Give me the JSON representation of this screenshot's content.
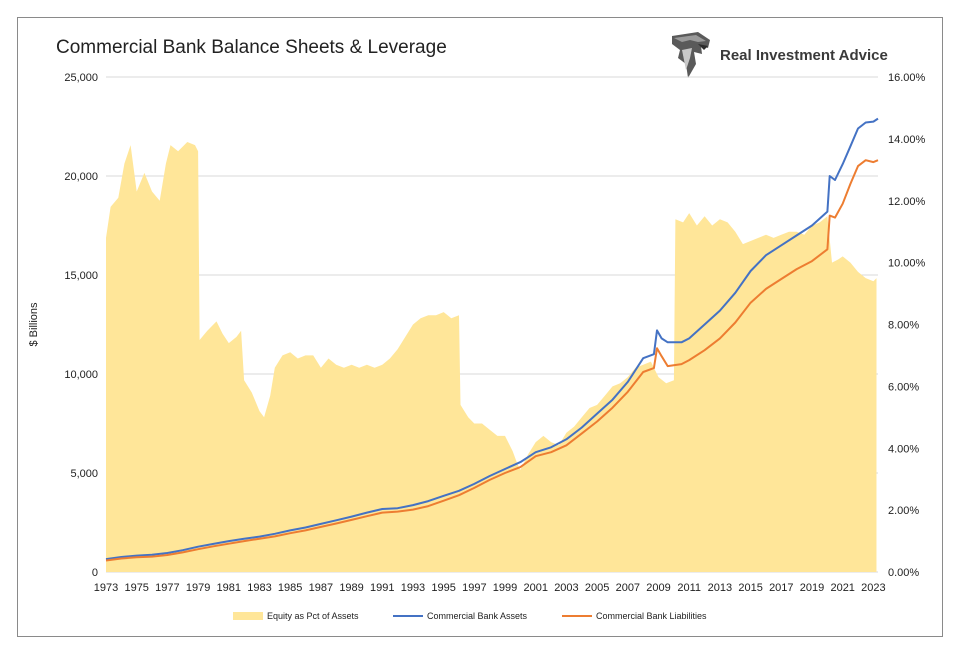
{
  "title": "Commercial Bank Balance Sheets & Leverage",
  "brand": {
    "name": "Real Investment Advice",
    "logo_icon": "eagle-head-logo-icon"
  },
  "colors": {
    "equity": "#FFE699",
    "assets": "#4472C4",
    "liabilities": "#ED7D31",
    "grid": "#D9D9D9"
  },
  "chart_data": {
    "type": "area+line",
    "ylabel": "$ Billions",
    "y_left": {
      "lim": [
        0,
        25000
      ],
      "ticks": [
        "0",
        "5,000",
        "10,000",
        "15,000",
        "20,000",
        "25,000"
      ]
    },
    "y_right": {
      "lim": [
        0,
        16
      ],
      "ticks": [
        "0.00%",
        "2.00%",
        "4.00%",
        "6.00%",
        "8.00%",
        "10.00%",
        "12.00%",
        "14.00%",
        "16.00%"
      ]
    },
    "x_ticks": [
      "1973",
      "1975",
      "1977",
      "1979",
      "1981",
      "1983",
      "1985",
      "1987",
      "1989",
      "1991",
      "1993",
      "1995",
      "1997",
      "1999",
      "2001",
      "2003",
      "2005",
      "2007",
      "2009",
      "2011",
      "2013",
      "2015",
      "2017",
      "2019",
      "2021",
      "2023"
    ],
    "grid": "horizontal",
    "legend_position": "bottom",
    "series": [
      {
        "name": "Equity as Pct of Assets",
        "type": "area",
        "axis": "right",
        "points": [
          [
            1973.0,
            10.8
          ],
          [
            1973.3,
            11.8
          ],
          [
            1973.8,
            12.1
          ],
          [
            1974.2,
            13.2
          ],
          [
            1974.6,
            13.8
          ],
          [
            1975.0,
            12.3
          ],
          [
            1975.5,
            12.9
          ],
          [
            1976.0,
            12.3
          ],
          [
            1976.5,
            12.0
          ],
          [
            1976.9,
            13.2
          ],
          [
            1977.2,
            13.8
          ],
          [
            1977.7,
            13.6
          ],
          [
            1978.3,
            13.9
          ],
          [
            1978.8,
            13.8
          ],
          [
            1979.0,
            13.6
          ],
          [
            1979.1,
            7.5
          ],
          [
            1979.6,
            7.8
          ],
          [
            1980.2,
            8.1
          ],
          [
            1980.6,
            7.7
          ],
          [
            1981.0,
            7.4
          ],
          [
            1981.5,
            7.6
          ],
          [
            1981.8,
            7.8
          ],
          [
            1982.0,
            6.2
          ],
          [
            1982.5,
            5.8
          ],
          [
            1983.0,
            5.2
          ],
          [
            1983.3,
            5.0
          ],
          [
            1983.7,
            5.7
          ],
          [
            1984.0,
            6.6
          ],
          [
            1984.5,
            7.0
          ],
          [
            1985.0,
            7.1
          ],
          [
            1985.5,
            6.9
          ],
          [
            1986.0,
            7.0
          ],
          [
            1986.5,
            7.0
          ],
          [
            1987.0,
            6.6
          ],
          [
            1987.5,
            6.9
          ],
          [
            1988.0,
            6.7
          ],
          [
            1988.5,
            6.6
          ],
          [
            1989.0,
            6.7
          ],
          [
            1989.5,
            6.6
          ],
          [
            1990.0,
            6.7
          ],
          [
            1990.5,
            6.6
          ],
          [
            1991.0,
            6.7
          ],
          [
            1991.5,
            6.9
          ],
          [
            1992.0,
            7.2
          ],
          [
            1992.5,
            7.6
          ],
          [
            1993.0,
            8.0
          ],
          [
            1993.5,
            8.2
          ],
          [
            1994.0,
            8.3
          ],
          [
            1994.5,
            8.3
          ],
          [
            1995.0,
            8.4
          ],
          [
            1995.5,
            8.2
          ],
          [
            1996.0,
            8.3
          ],
          [
            1996.1,
            5.4
          ],
          [
            1996.6,
            5.0
          ],
          [
            1997.0,
            4.8
          ],
          [
            1997.5,
            4.8
          ],
          [
            1998.0,
            4.6
          ],
          [
            1998.5,
            4.4
          ],
          [
            1999.0,
            4.4
          ],
          [
            1999.5,
            3.9
          ],
          [
            1999.8,
            3.5
          ],
          [
            2000.0,
            3.3
          ],
          [
            2000.5,
            3.8
          ],
          [
            2001.0,
            4.2
          ],
          [
            2001.5,
            4.4
          ],
          [
            2002.0,
            4.2
          ],
          [
            2002.5,
            4.1
          ],
          [
            2003.0,
            4.5
          ],
          [
            2003.5,
            4.7
          ],
          [
            2004.0,
            5.0
          ],
          [
            2004.5,
            5.3
          ],
          [
            2005.0,
            5.4
          ],
          [
            2005.5,
            5.7
          ],
          [
            2006.0,
            6.0
          ],
          [
            2006.5,
            6.1
          ],
          [
            2007.0,
            6.3
          ],
          [
            2007.5,
            6.6
          ],
          [
            2008.0,
            6.7
          ],
          [
            2008.5,
            6.8
          ],
          [
            2009.0,
            6.3
          ],
          [
            2009.5,
            6.1
          ],
          [
            2010.0,
            6.2
          ],
          [
            2010.1,
            11.4
          ],
          [
            2010.6,
            11.3
          ],
          [
            2011.0,
            11.6
          ],
          [
            2011.5,
            11.2
          ],
          [
            2012.0,
            11.5
          ],
          [
            2012.5,
            11.2
          ],
          [
            2013.0,
            11.4
          ],
          [
            2013.5,
            11.3
          ],
          [
            2014.0,
            11.0
          ],
          [
            2014.5,
            10.6
          ],
          [
            2015.0,
            10.7
          ],
          [
            2015.5,
            10.8
          ],
          [
            2016.0,
            10.9
          ],
          [
            2016.5,
            10.8
          ],
          [
            2017.0,
            10.9
          ],
          [
            2017.5,
            11.0
          ],
          [
            2018.0,
            11.0
          ],
          [
            2018.5,
            10.9
          ],
          [
            2019.0,
            11.2
          ],
          [
            2019.5,
            11.3
          ],
          [
            2020.0,
            11.5
          ],
          [
            2020.3,
            10.0
          ],
          [
            2020.7,
            10.1
          ],
          [
            2021.0,
            10.2
          ],
          [
            2021.5,
            10.0
          ],
          [
            2022.0,
            9.7
          ],
          [
            2022.5,
            9.5
          ],
          [
            2023.0,
            9.4
          ],
          [
            2023.2,
            9.5
          ]
        ]
      },
      {
        "name": "Commercial Bank Assets",
        "type": "line",
        "axis": "left",
        "points": [
          [
            1973.0,
            650
          ],
          [
            1974.0,
            760
          ],
          [
            1975.0,
            830
          ],
          [
            1976.0,
            870
          ],
          [
            1977.0,
            960
          ],
          [
            1978.0,
            1100
          ],
          [
            1979.0,
            1280
          ],
          [
            1980.0,
            1420
          ],
          [
            1981.0,
            1560
          ],
          [
            1982.0,
            1680
          ],
          [
            1983.0,
            1790
          ],
          [
            1984.0,
            1930
          ],
          [
            1985.0,
            2100
          ],
          [
            1986.0,
            2250
          ],
          [
            1987.0,
            2430
          ],
          [
            1988.0,
            2610
          ],
          [
            1989.0,
            2800
          ],
          [
            1990.0,
            3000
          ],
          [
            1991.0,
            3180
          ],
          [
            1992.0,
            3220
          ],
          [
            1993.0,
            3380
          ],
          [
            1994.0,
            3580
          ],
          [
            1995.0,
            3850
          ],
          [
            1996.0,
            4100
          ],
          [
            1997.0,
            4450
          ],
          [
            1998.0,
            4850
          ],
          [
            1999.0,
            5200
          ],
          [
            2000.0,
            5550
          ],
          [
            2001.0,
            6050
          ],
          [
            2002.0,
            6300
          ],
          [
            2003.0,
            6700
          ],
          [
            2004.0,
            7300
          ],
          [
            2005.0,
            8000
          ],
          [
            2006.0,
            8700
          ],
          [
            2007.0,
            9600
          ],
          [
            2008.0,
            10800
          ],
          [
            2008.7,
            11000
          ],
          [
            2008.9,
            12200
          ],
          [
            2009.2,
            11800
          ],
          [
            2009.6,
            11600
          ],
          [
            2010.5,
            11600
          ],
          [
            2011.0,
            11800
          ],
          [
            2012.0,
            12500
          ],
          [
            2013.0,
            13200
          ],
          [
            2014.0,
            14100
          ],
          [
            2015.0,
            15200
          ],
          [
            2016.0,
            16000
          ],
          [
            2017.0,
            16500
          ],
          [
            2018.0,
            17000
          ],
          [
            2019.0,
            17500
          ],
          [
            2020.0,
            18200
          ],
          [
            2020.15,
            20000
          ],
          [
            2020.5,
            19800
          ],
          [
            2021.0,
            20600
          ],
          [
            2021.5,
            21500
          ],
          [
            2022.0,
            22400
          ],
          [
            2022.5,
            22700
          ],
          [
            2023.0,
            22750
          ],
          [
            2023.3,
            22900
          ]
        ]
      },
      {
        "name": "Commercial Bank Liabilities",
        "type": "line",
        "axis": "left",
        "points": [
          [
            1973.0,
            580
          ],
          [
            1974.0,
            680
          ],
          [
            1975.0,
            740
          ],
          [
            1976.0,
            780
          ],
          [
            1977.0,
            860
          ],
          [
            1978.0,
            990
          ],
          [
            1979.0,
            1150
          ],
          [
            1980.0,
            1300
          ],
          [
            1981.0,
            1430
          ],
          [
            1982.0,
            1560
          ],
          [
            1983.0,
            1680
          ],
          [
            1984.0,
            1800
          ],
          [
            1985.0,
            1960
          ],
          [
            1986.0,
            2100
          ],
          [
            1987.0,
            2280
          ],
          [
            1988.0,
            2450
          ],
          [
            1989.0,
            2630
          ],
          [
            1990.0,
            2820
          ],
          [
            1991.0,
            3000
          ],
          [
            1992.0,
            3050
          ],
          [
            1993.0,
            3150
          ],
          [
            1994.0,
            3330
          ],
          [
            1995.0,
            3600
          ],
          [
            1996.0,
            3880
          ],
          [
            1997.0,
            4250
          ],
          [
            1998.0,
            4650
          ],
          [
            1999.0,
            5000
          ],
          [
            2000.0,
            5300
          ],
          [
            2001.0,
            5850
          ],
          [
            2002.0,
            6050
          ],
          [
            2003.0,
            6400
          ],
          [
            2004.0,
            7000
          ],
          [
            2005.0,
            7600
          ],
          [
            2006.0,
            8300
          ],
          [
            2007.0,
            9100
          ],
          [
            2008.0,
            10100
          ],
          [
            2008.7,
            10300
          ],
          [
            2008.9,
            11300
          ],
          [
            2009.2,
            10900
          ],
          [
            2009.6,
            10400
          ],
          [
            2010.5,
            10500
          ],
          [
            2011.0,
            10700
          ],
          [
            2012.0,
            11200
          ],
          [
            2013.0,
            11800
          ],
          [
            2014.0,
            12600
          ],
          [
            2015.0,
            13600
          ],
          [
            2016.0,
            14300
          ],
          [
            2017.0,
            14800
          ],
          [
            2018.0,
            15300
          ],
          [
            2019.0,
            15700
          ],
          [
            2020.0,
            16300
          ],
          [
            2020.15,
            18000
          ],
          [
            2020.5,
            17900
          ],
          [
            2021.0,
            18600
          ],
          [
            2021.5,
            19600
          ],
          [
            2022.0,
            20500
          ],
          [
            2022.5,
            20800
          ],
          [
            2023.0,
            20700
          ],
          [
            2023.3,
            20800
          ]
        ]
      }
    ]
  }
}
